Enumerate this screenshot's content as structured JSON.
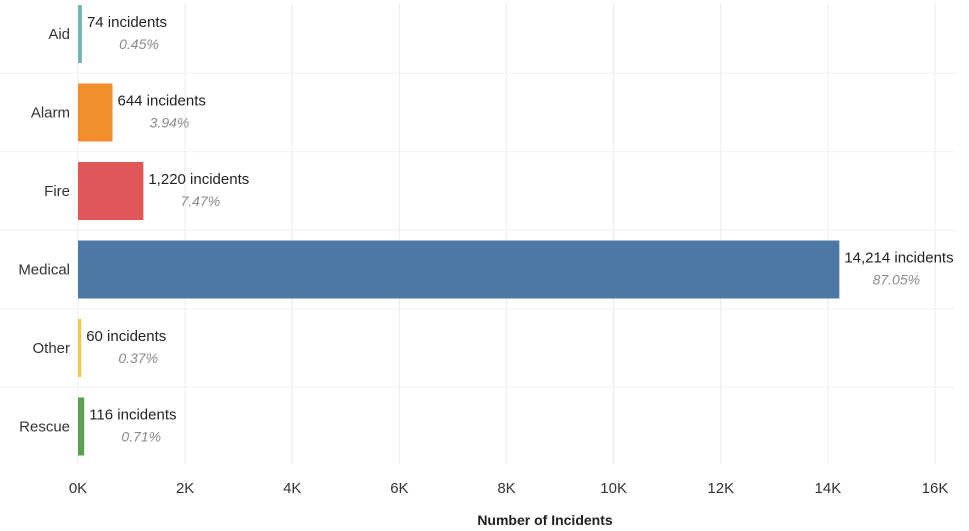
{
  "chart_data": {
    "type": "bar",
    "orientation": "horizontal",
    "categories": [
      "Aid",
      "Alarm",
      "Fire",
      "Medical",
      "Other",
      "Rescue"
    ],
    "values": [
      74,
      644,
      1220,
      14214,
      60,
      116
    ],
    "value_labels": [
      "74 incidents",
      "644 incidents",
      "1,220 incidents",
      "14,214 incidents",
      "60 incidents",
      "116 incidents"
    ],
    "percent_labels": [
      "0.45%",
      "3.94%",
      "7.47%",
      "87.05%",
      "0.37%",
      "0.71%"
    ],
    "colors": [
      "#76b7b2",
      "#f28e2b",
      "#e15759",
      "#4e79a7",
      "#edc948",
      "#59a14f"
    ],
    "xlim": [
      0,
      16000
    ],
    "xticks": [
      0,
      2000,
      4000,
      6000,
      8000,
      10000,
      12000,
      14000,
      16000
    ],
    "xtick_labels": [
      "0K",
      "2K",
      "4K",
      "6K",
      "8K",
      "10K",
      "12K",
      "14K",
      "16K"
    ],
    "xlabel": "Number of Incidents",
    "ylabel": "",
    "title": "",
    "grid": "vertical",
    "legend": "none"
  }
}
